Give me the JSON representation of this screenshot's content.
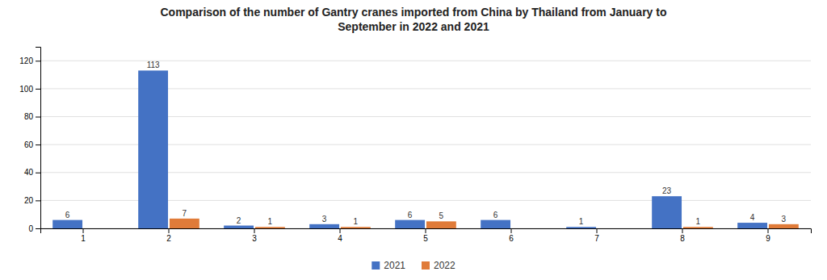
{
  "chart_data": {
    "type": "bar",
    "title": "Comparison of the number of Gantry cranes imported from China by Thailand from January to\nSeptember in 2022 and 2021",
    "categories": [
      "1",
      "2",
      "3",
      "4",
      "5",
      "6",
      "7",
      "8",
      "9"
    ],
    "series": [
      {
        "name": "2021",
        "color": "#4472C4",
        "values": [
          6,
          113,
          2,
          3,
          6,
          6,
          1,
          23,
          4
        ],
        "value_labels": [
          "6",
          "113",
          "2",
          "3",
          "6",
          "6",
          "1",
          "23",
          "4"
        ]
      },
      {
        "name": "2022",
        "color": "#E07B39",
        "values": [
          0,
          7,
          1,
          1,
          5,
          0,
          0,
          1,
          3
        ],
        "value_labels": [
          null,
          "7",
          "1",
          "1",
          "5",
          null,
          null,
          "1",
          "3"
        ]
      }
    ],
    "ylim": [
      0,
      130
    ],
    "yticks": [
      0,
      20,
      40,
      60,
      80,
      100,
      120
    ],
    "grid": true,
    "legend": "bottom",
    "data_labels": true
  }
}
